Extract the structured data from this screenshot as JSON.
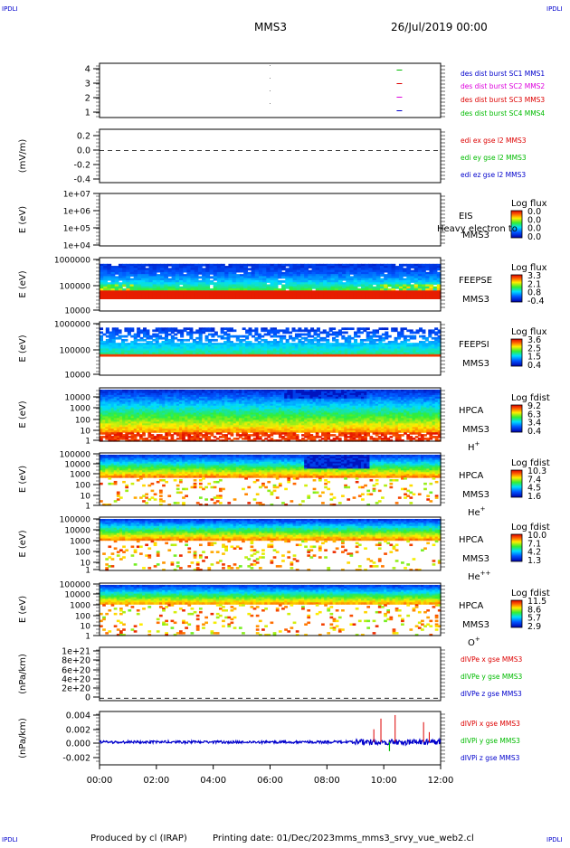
{
  "header": {
    "corner_left": "IPDLI",
    "corner_right": "IPDLI",
    "title": "MMS3",
    "date": "26/Jul/2019 00:00"
  },
  "footer": {
    "corner_left": "IPDLI",
    "corner_right": "IPDLI",
    "produced_by": "Produced by cl (IRAP)",
    "printing_date": "Printing date: 01/Dec/2023",
    "filename": "mms_mms3_srvy_vue_web2.cl"
  },
  "colors": {
    "blue": "#0000cc",
    "magenta": "#dd00dd",
    "red": "#dd0000",
    "green": "#00bb00"
  },
  "chart_data": [
    {
      "id": "burst",
      "type": "scatter",
      "ylabel": "",
      "yticks": [
        "4",
        "3",
        "2",
        "1"
      ],
      "ylim": [
        0.5,
        4.5
      ],
      "legend": [
        {
          "label": "des dist burst SC1 MMS1",
          "color": "#0000cc"
        },
        {
          "label": "des dist burst SC2 MMS2",
          "color": "#dd00dd"
        },
        {
          "label": "des dist burst SC3 MMS3",
          "color": "#dd0000"
        },
        {
          "label": "des dist burst SC4 MMS4",
          "color": "#00bb00"
        }
      ],
      "marks": [
        {
          "x": 10.55,
          "y": 4,
          "color": "#00bb00"
        },
        {
          "x": 10.55,
          "y": 3,
          "color": "#dd0000"
        },
        {
          "x": 10.55,
          "y": 2,
          "color": "#dd00dd"
        },
        {
          "x": 10.55,
          "y": 1,
          "color": "#0000cc"
        }
      ]
    },
    {
      "id": "edi",
      "type": "line",
      "ylabel": "(mV/m)",
      "yticks": [
        "0.2",
        "0.0",
        "-0.2",
        "-0.4"
      ],
      "ylim": [
        -0.45,
        0.3
      ],
      "zero_line": 0,
      "legend": [
        {
          "label": "edi ex gse l2 MMS3",
          "color": "#dd0000"
        },
        {
          "label": "edi ey gse l2 MMS3",
          "color": "#00bb00"
        },
        {
          "label": "edi ez gse l2 MMS3",
          "color": "#0000cc"
        }
      ]
    },
    {
      "id": "eis",
      "type": "heatmap",
      "ylabel": "E (eV)",
      "yticks": [
        "1e+07",
        "1e+06",
        "1e+05",
        "1e+04"
      ],
      "log_scale": true,
      "instrument": "EIS",
      "spacecraft": "MMS3",
      "overlay_text": "Heavy electron to",
      "colorbar": {
        "title": "Log flux",
        "ticks": [
          "0.0",
          "0.0",
          "0.0",
          "0.0"
        ]
      }
    },
    {
      "id": "feepse",
      "type": "heatmap",
      "ylabel": "E (eV)",
      "yticks": [
        "1000000",
        "100000",
        "10000"
      ],
      "log_scale": true,
      "instrument": "FEEPSE",
      "spacecraft": "MMS3",
      "colorbar": {
        "title": "Log flux",
        "ticks": [
          "3.3",
          "2.1",
          "0.8",
          "-0.4"
        ]
      }
    },
    {
      "id": "feepsi",
      "type": "heatmap",
      "ylabel": "E (eV)",
      "yticks": [
        "1000000",
        "100000",
        "10000"
      ],
      "log_scale": true,
      "instrument": "FEEPSI",
      "spacecraft": "MMS3",
      "colorbar": {
        "title": "Log flux",
        "ticks": [
          "3.6",
          "2.5",
          "1.5",
          "0.4"
        ]
      }
    },
    {
      "id": "hpca_h",
      "type": "heatmap",
      "ylabel": "E (eV)",
      "yticks": [
        "10000",
        "1000",
        "100",
        "10",
        "1"
      ],
      "log_scale": true,
      "instrument": "HPCA",
      "spacecraft": "MMS3",
      "species": "H",
      "species_sup": "+",
      "colorbar": {
        "title": "Log fdist",
        "ticks": [
          "9.2",
          "6.3",
          "3.4",
          "0.4"
        ]
      }
    },
    {
      "id": "hpca_he",
      "type": "heatmap",
      "ylabel": "E (eV)",
      "yticks": [
        "100000",
        "10000",
        "1000",
        "100",
        "10",
        "1"
      ],
      "log_scale": true,
      "instrument": "HPCA",
      "spacecraft": "MMS3",
      "species": "He",
      "species_sup": "+",
      "colorbar": {
        "title": "Log fdist",
        "ticks": [
          "10.3",
          "7.4",
          "4.5",
          "1.6"
        ]
      }
    },
    {
      "id": "hpca_hepp",
      "type": "heatmap",
      "ylabel": "E (eV)",
      "yticks": [
        "100000",
        "10000",
        "1000",
        "100",
        "10",
        "1"
      ],
      "log_scale": true,
      "instrument": "HPCA",
      "spacecraft": "MMS3",
      "species": "He",
      "species_sup": "++",
      "colorbar": {
        "title": "Log fdist",
        "ticks": [
          "10.0",
          "7.1",
          "4.2",
          "1.3"
        ]
      }
    },
    {
      "id": "hpca_o",
      "type": "heatmap",
      "ylabel": "E (eV)",
      "yticks": [
        "100000",
        "10000",
        "1000",
        "100",
        "10",
        "1"
      ],
      "log_scale": true,
      "instrument": "HPCA",
      "spacecraft": "MMS3",
      "species": "O",
      "species_sup": "+",
      "colorbar": {
        "title": "Log fdist",
        "ticks": [
          "11.5",
          "8.6",
          "5.7",
          "2.9"
        ]
      }
    },
    {
      "id": "divpe",
      "type": "line",
      "ylabel": "(nPa/km)",
      "yticks": [
        "1e+21",
        "8e+20",
        "6e+20",
        "4e+20",
        "2e+20",
        "0"
      ],
      "ylim": [
        -5e+19,
        1.05e+21
      ],
      "zero_line": 0,
      "legend": [
        {
          "label": "dIVPe x gse MMS3",
          "color": "#dd0000"
        },
        {
          "label": "dIVPe y gse MMS3",
          "color": "#00bb00"
        },
        {
          "label": "dIVPe z gse MMS3",
          "color": "#0000cc"
        }
      ]
    },
    {
      "id": "divpi",
      "type": "line",
      "ylabel": "(nPa/km)",
      "yticks": [
        "0.004",
        "0.002",
        "0.000",
        "-0.002"
      ],
      "ylim": [
        -0.0032,
        0.0043
      ],
      "legend": [
        {
          "label": "dIVPi x gse MMS3",
          "color": "#dd0000"
        },
        {
          "label": "dIVPi y gse MMS3",
          "color": "#00bb00"
        },
        {
          "label": "dIVPi z gse MMS3",
          "color": "#0000cc"
        }
      ],
      "spikes": [
        {
          "x": 9.65,
          "y": 0.0018
        },
        {
          "x": 9.9,
          "y": 0.0033
        },
        {
          "x": 10.4,
          "y": 0.0038
        },
        {
          "x": 11.4,
          "y": 0.0028
        },
        {
          "x": 11.6,
          "y": 0.0014
        }
      ]
    }
  ],
  "time_axis": {
    "labels": [
      "00:00",
      "02:00",
      "04:00",
      "06:00",
      "08:00",
      "10:00",
      "12:00"
    ],
    "range_hours": [
      0,
      12
    ]
  }
}
